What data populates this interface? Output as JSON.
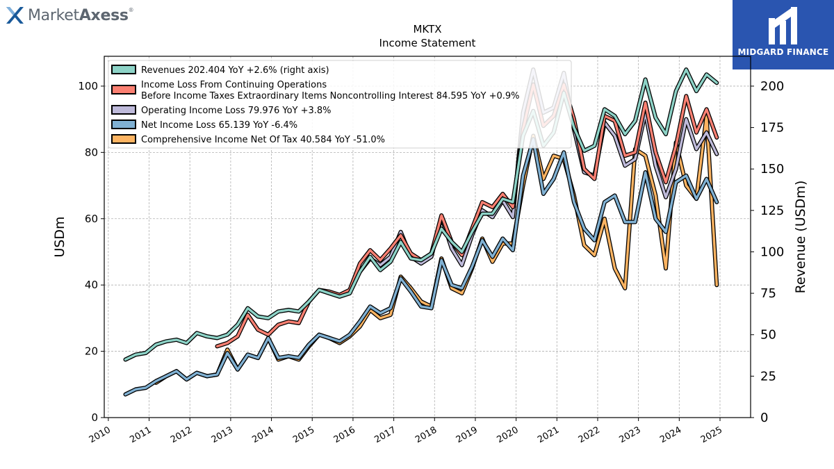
{
  "brand": {
    "name_light": "Market",
    "name_bold": "Axess",
    "reg_mark": "®"
  },
  "badge": {
    "label": "MIDGARD FINANCE"
  },
  "chart_data": {
    "type": "line",
    "title": "MKTX",
    "subtitle": "Income Statement",
    "ylabel": "USDm",
    "y2label": "Revenue (USDm)",
    "ylim": [
      0,
      109
    ],
    "y2lim": [
      0,
      218
    ],
    "xlim": [
      2009.9,
      2025.75
    ],
    "yticks": [
      0,
      20,
      40,
      60,
      80,
      100
    ],
    "y2ticks": [
      0,
      25,
      50,
      75,
      100,
      125,
      150,
      175,
      200
    ],
    "xticks": [
      2010,
      2011,
      2012,
      2013,
      2014,
      2015,
      2016,
      2017,
      2018,
      2019,
      2020,
      2021,
      2022,
      2023,
      2024,
      2025
    ],
    "grid": true,
    "legend_position": "top-left",
    "series": [
      {
        "name": "Revenues  202.404 YoY +2.6% (right axis)",
        "color": "#8dd3c7",
        "axis": "right",
        "x": [
          2010.42,
          2010.67,
          2010.92,
          2011.17,
          2011.42,
          2011.67,
          2011.92,
          2012.17,
          2012.42,
          2012.67,
          2012.92,
          2013.17,
          2013.42,
          2013.67,
          2013.92,
          2014.17,
          2014.42,
          2014.67,
          2014.92,
          2015.17,
          2015.42,
          2015.67,
          2015.92,
          2016.17,
          2016.42,
          2016.67,
          2016.92,
          2017.17,
          2017.42,
          2017.67,
          2017.92,
          2018.17,
          2018.42,
          2018.67,
          2018.92,
          2019.17,
          2019.42,
          2019.67,
          2019.92,
          2020.17,
          2020.42,
          2020.67,
          2020.92,
          2021.17,
          2021.42,
          2021.67,
          2021.92,
          2022.17,
          2022.42,
          2022.67,
          2022.92,
          2023.17,
          2023.42,
          2023.67,
          2023.92,
          2024.17,
          2024.42,
          2024.67,
          2024.92
        ],
        "y": [
          35,
          38,
          39,
          44,
          46,
          47,
          45,
          51,
          49,
          48,
          50,
          56,
          66,
          61,
          60,
          64,
          65,
          64,
          70,
          77,
          75,
          73,
          75,
          88,
          97,
          89,
          94,
          106,
          96,
          95,
          99,
          114,
          106,
          100,
          112,
          123,
          123,
          132,
          130,
          170,
          185,
          164,
          172,
          196,
          175,
          161,
          164,
          186,
          182,
          171,
          179,
          204,
          181,
          171,
          197,
          210,
          197,
          207,
          202
        ]
      },
      {
        "name": "Income Loss From Continuing Operations Before Income Taxes Extraordinary Items Noncontrolling Interest  84.595 YoY +0.9%",
        "color": "#fb8072",
        "axis": "left",
        "x": [
          2012.67,
          2012.92,
          2013.17,
          2013.42,
          2013.67,
          2013.92,
          2014.17,
          2014.42,
          2014.67,
          2014.92,
          2015.17,
          2015.42,
          2015.67,
          2015.92,
          2016.17,
          2016.42,
          2016.67,
          2016.92,
          2017.17,
          2017.42,
          2017.67,
          2017.92,
          2018.17,
          2018.42,
          2018.67,
          2018.92,
          2019.17,
          2019.42,
          2019.67,
          2019.92,
          2020.17,
          2020.42,
          2020.67,
          2020.92,
          2021.17,
          2021.42,
          2021.67,
          2021.92,
          2022.17,
          2022.42,
          2022.67,
          2022.92,
          2023.17,
          2023.42,
          2023.67,
          2023.92,
          2024.17,
          2024.42,
          2024.67,
          2024.92
        ],
        "y": [
          21.5,
          22.5,
          24.5,
          31,
          26.5,
          25,
          28,
          29,
          28.5,
          35,
          38.5,
          38,
          37,
          38.5,
          46.5,
          50.5,
          47.5,
          51,
          55,
          49.5,
          47.5,
          49.5,
          61,
          53,
          49,
          57,
          65,
          63.5,
          67.5,
          63.5,
          87,
          100.5,
          88,
          91,
          100.5,
          90,
          75,
          72,
          91,
          89.5,
          79,
          80,
          95,
          80,
          71,
          82,
          97,
          86,
          93,
          84.5
        ]
      },
      {
        "name": "Operating Income Loss  79.976 YoY +3.8%",
        "color": "#bebada",
        "axis": "left",
        "x": [
          2016.17,
          2016.42,
          2016.67,
          2016.92,
          2017.17,
          2017.42,
          2017.67,
          2017.92,
          2018.17,
          2018.42,
          2018.67,
          2018.92,
          2019.17,
          2019.42,
          2019.67,
          2019.92,
          2020.17,
          2020.42,
          2020.67,
          2020.92,
          2021.17,
          2021.42,
          2021.67,
          2021.92,
          2022.17,
          2022.42,
          2022.67,
          2022.92,
          2023.17,
          2023.42,
          2023.67,
          2023.92,
          2024.17,
          2024.42,
          2024.67,
          2024.92
        ],
        "y": [
          44,
          48,
          46,
          48.5,
          56,
          48.5,
          46.5,
          48.5,
          60.5,
          51,
          46,
          55,
          62.5,
          60.5,
          65.5,
          60.5,
          92,
          105,
          92,
          93.5,
          104,
          87,
          74,
          73,
          89,
          85,
          76,
          78,
          92,
          76,
          66.5,
          75,
          90,
          81,
          86,
          79.5
        ]
      },
      {
        "name": "Net Income Loss  65.139 YoY -6.4%",
        "color": "#80b1d3",
        "axis": "left",
        "x": [
          2010.42,
          2010.67,
          2010.92,
          2011.17,
          2011.42,
          2011.67,
          2011.92,
          2012.17,
          2012.42,
          2012.67,
          2012.92,
          2013.17,
          2013.42,
          2013.67,
          2013.92,
          2014.17,
          2014.42,
          2014.67,
          2014.92,
          2015.17,
          2015.42,
          2015.67,
          2015.92,
          2016.17,
          2016.42,
          2016.67,
          2016.92,
          2017.17,
          2017.42,
          2017.67,
          2017.92,
          2018.17,
          2018.42,
          2018.67,
          2018.92,
          2019.17,
          2019.42,
          2019.67,
          2019.92,
          2020.17,
          2020.42,
          2020.67,
          2020.92,
          2021.17,
          2021.42,
          2021.67,
          2021.92,
          2022.17,
          2022.42,
          2022.67,
          2022.92,
          2023.17,
          2023.42,
          2023.67,
          2023.92,
          2024.17,
          2024.42,
          2024.67,
          2024.92
        ],
        "y": [
          7,
          8.5,
          9,
          11,
          12.5,
          14,
          11.5,
          13.5,
          12.5,
          13,
          19.5,
          14.5,
          19,
          18,
          24,
          18,
          18.5,
          18,
          22,
          25,
          24,
          23,
          25,
          29,
          33.5,
          31.5,
          33,
          42,
          38,
          33.5,
          33,
          47.5,
          40,
          39,
          45.5,
          53.5,
          48.5,
          54,
          50.5,
          73,
          84,
          67.5,
          72,
          80,
          65,
          57,
          53.5,
          65,
          67,
          59,
          59,
          74,
          60,
          56,
          71,
          73,
          66,
          72,
          65
        ]
      },
      {
        "name": "Comprehensive Income Net Of Tax  40.584 YoY -51.0%",
        "color": "#fdb462",
        "axis": "left",
        "x": [
          2011.17,
          2011.42,
          2011.67,
          2011.92,
          2012.17,
          2012.42,
          2012.67,
          2012.92,
          2013.17,
          2013.42,
          2013.67,
          2013.92,
          2014.17,
          2014.42,
          2014.67,
          2014.92,
          2015.17,
          2015.42,
          2015.67,
          2015.92,
          2016.17,
          2016.42,
          2016.67,
          2016.92,
          2017.17,
          2017.42,
          2017.67,
          2017.92,
          2018.17,
          2018.42,
          2018.67,
          2018.92,
          2019.17,
          2019.42,
          2019.67,
          2019.92,
          2020.17,
          2020.42,
          2020.67,
          2020.92,
          2021.17,
          2021.42,
          2021.67,
          2021.92,
          2022.17,
          2022.42,
          2022.67,
          2022.92,
          2023.17,
          2023.42,
          2023.67,
          2023.92,
          2024.17,
          2024.42,
          2024.67,
          2024.92
        ],
        "y": [
          10.5,
          12.5,
          14,
          11.5,
          13.5,
          12.5,
          13,
          20.5,
          14.5,
          19,
          18,
          24,
          17.5,
          18.5,
          17.5,
          21.5,
          25,
          24,
          22.5,
          24.5,
          27.5,
          32.5,
          30,
          31,
          42.5,
          39,
          35,
          33.5,
          48,
          39,
          37.5,
          45,
          54,
          47,
          52.5,
          52.5,
          70,
          85,
          72,
          79,
          78,
          67,
          52,
          49,
          60,
          45,
          39,
          81,
          79,
          67,
          45,
          83,
          70,
          66,
          91,
          40
        ]
      }
    ]
  }
}
